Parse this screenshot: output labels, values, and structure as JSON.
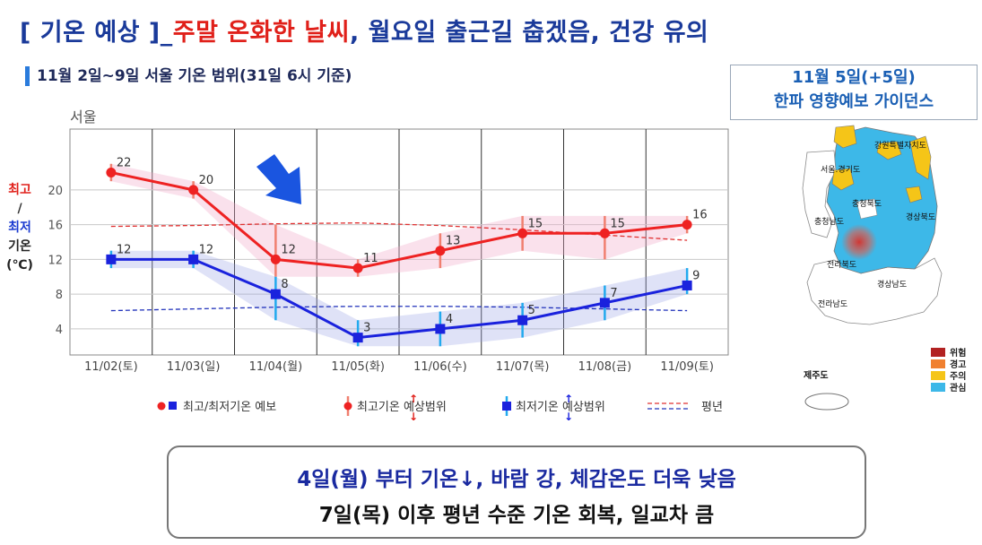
{
  "headline": {
    "part1": "[ 기온 예상 ]_",
    "part2": "주말 온화한 날씨",
    "part3": ", 월요일 출근길 춥겠음, 건강 유의"
  },
  "subheading": "11월 2일~9일 서울 기온 범위(31일 6시 기준)",
  "chart_data": {
    "type": "line",
    "title": "서울",
    "ylabel": [
      "최고",
      "/",
      "최저",
      "기온",
      "(℃)"
    ],
    "categories": [
      "11/02(토)",
      "11/03(일)",
      "11/04(월)",
      "11/05(화)",
      "11/06(수)",
      "11/07(목)",
      "11/08(금)",
      "11/09(토)"
    ],
    "ylim": [
      1,
      27
    ],
    "yticks": [
      4,
      8,
      12,
      16,
      20
    ],
    "grid": true,
    "series": [
      {
        "name": "최고/최저기온 예보",
        "role": "max",
        "color": "#ee2222",
        "values": [
          22,
          20,
          12,
          11,
          13,
          15,
          15,
          16
        ],
        "range_low": [
          21,
          19,
          10,
          10,
          11,
          13,
          12,
          15
        ],
        "range_high": [
          23,
          21,
          16,
          12,
          15,
          17,
          17,
          17
        ]
      },
      {
        "name": "최고/최저기온 예보",
        "role": "min",
        "color": "#1a22dd",
        "values": [
          12,
          12,
          8,
          3,
          4,
          5,
          7,
          9
        ],
        "range_low": [
          11,
          11,
          5,
          2,
          2,
          3,
          5,
          8
        ],
        "range_high": [
          13,
          13,
          10,
          5,
          6,
          7,
          9,
          11
        ]
      },
      {
        "name": "평년",
        "role": "normal-max",
        "color": "#e03030",
        "dashed": true,
        "values": [
          15.8,
          15.9,
          16.1,
          16.2,
          15.9,
          15.4,
          14.8,
          14.2
        ]
      },
      {
        "name": "평년",
        "role": "normal-min",
        "color": "#2233bb",
        "dashed": true,
        "values": [
          6.1,
          6.3,
          6.5,
          6.6,
          6.6,
          6.5,
          6.3,
          6.1
        ]
      }
    ],
    "legend": {
      "placement": "bottom",
      "items": [
        "최고/최저기온 예보",
        "최고기온 예상범위",
        "최저기온 예상범위",
        "평년"
      ]
    }
  },
  "guide_box": {
    "line1": "11월 5일(+5일)",
    "line2": "한파 영향예보 가이던스"
  },
  "map": {
    "regions": [
      "강원특별자치도",
      "서울.경기도",
      "충청북도",
      "충청남도",
      "경상북도",
      "전라북도",
      "경상남도",
      "전라남도",
      "제주도"
    ],
    "legend": [
      {
        "label": "위험",
        "color": "#b22222"
      },
      {
        "label": "경고",
        "color": "#f08030"
      },
      {
        "label": "주의",
        "color": "#f5c518"
      },
      {
        "label": "관심",
        "color": "#3db8e8"
      }
    ]
  },
  "summary": {
    "line1": "4일(월) 부터 기온↓, 바람 강, 체감온도 더욱 낮음",
    "line2": "7일(목) 이후 평년 수준 기온 회복, 일교차 큼"
  }
}
